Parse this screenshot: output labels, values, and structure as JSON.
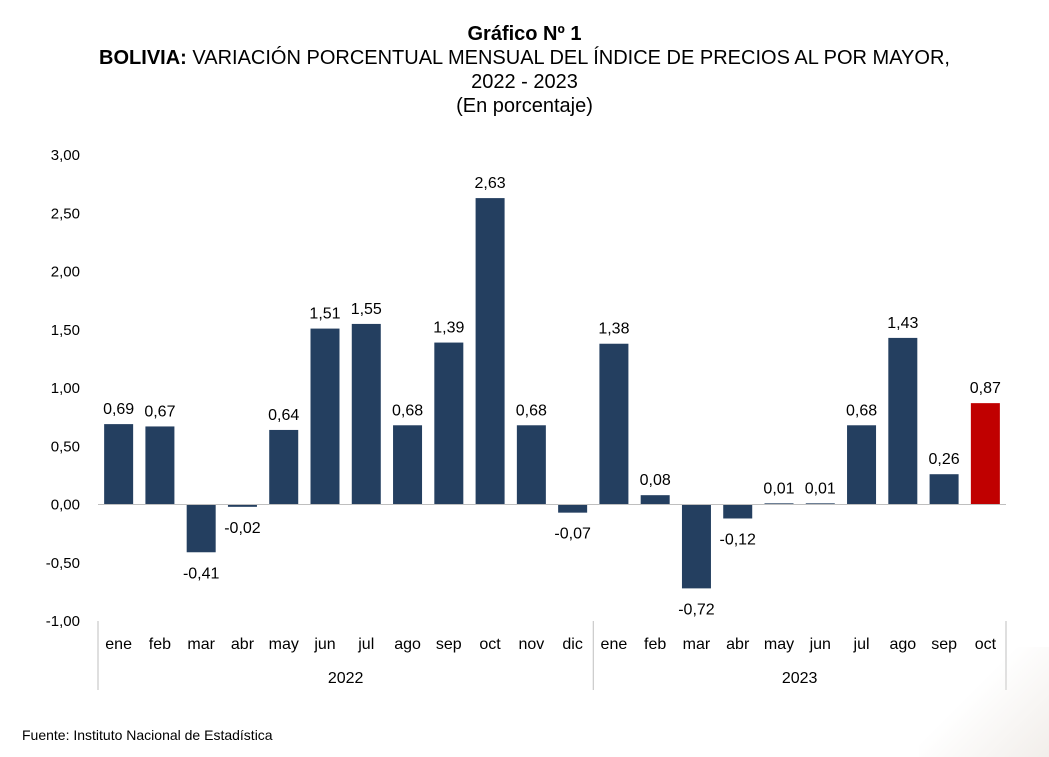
{
  "header": {
    "title": "Gráfico Nº 1",
    "subtitle_bold": "BOLIVIA:",
    "subtitle_rest": " VARIACIÓN PORCENTUAL MENSUAL DEL ÍNDICE DE PRECIOS AL POR MAYOR,",
    "subtitle_years": "2022 - 2023",
    "units": "(En porcentaje)"
  },
  "source": "Fuente: Instituto Nacional de Estadística",
  "chart_data": {
    "type": "bar",
    "title": "Gráfico Nº 1",
    "ylim": [
      -1.0,
      3.0
    ],
    "yticks": [
      "3,00",
      "2,50",
      "2,00",
      "1,50",
      "1,00",
      "0,50",
      "0,00",
      "-0,50",
      "-1,00"
    ],
    "ytick_values": [
      3.0,
      2.5,
      2.0,
      1.5,
      1.0,
      0.5,
      0.0,
      -0.5,
      -1.0
    ],
    "grid": false,
    "groups": [
      {
        "label": "2022",
        "count": 12
      },
      {
        "label": "2023",
        "count": 10
      }
    ],
    "categories": [
      "ene",
      "feb",
      "mar",
      "abr",
      "may",
      "jun",
      "jul",
      "ago",
      "sep",
      "oct",
      "nov",
      "dic",
      "ene",
      "feb",
      "mar",
      "abr",
      "may",
      "jun",
      "jul",
      "ago",
      "sep",
      "oct"
    ],
    "values": [
      0.69,
      0.67,
      -0.41,
      -0.02,
      0.64,
      1.51,
      1.55,
      0.68,
      1.39,
      2.63,
      0.68,
      -0.07,
      1.38,
      0.08,
      -0.72,
      -0.12,
      0.01,
      0.01,
      0.68,
      1.43,
      0.26,
      0.87
    ],
    "labels": [
      "0,69",
      "0,67",
      "-0,41",
      "-0,02",
      "0,64",
      "1,51",
      "1,55",
      "0,68",
      "1,39",
      "2,63",
      "0,68",
      "-0,07",
      "1,38",
      "0,08",
      "-0,72",
      "-0,12",
      "0,01",
      "0,01",
      "0,68",
      "1,43",
      "0,26",
      "0,87"
    ],
    "colors": {
      "default": "#243f60",
      "highlight": "#c00000",
      "axis": "#bfbfbf"
    },
    "highlight_index": 21
  }
}
